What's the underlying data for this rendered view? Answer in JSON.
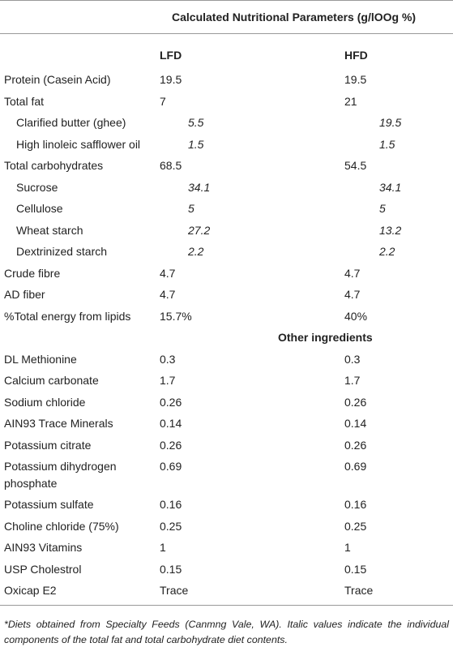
{
  "header": {
    "title": "Calculated Nutritional Parameters (g/lOOg %)",
    "columns": [
      "LFD",
      "HFD"
    ]
  },
  "table": {
    "rows": [
      {
        "label": "Protein (Casein Acid)",
        "lfd": 19.5,
        "hfd": 19.5
      },
      {
        "label": "Total fat",
        "lfd": 7,
        "hfd": 21
      },
      {
        "label": "Clarified butter (ghee)",
        "lfd": 5.5,
        "hfd": 19.5,
        "italic": true
      },
      {
        "label": "High linoleic safflower oil",
        "lfd": 1.5,
        "hfd": 1.5,
        "italic": true
      },
      {
        "label": "Total carbohydrates",
        "lfd": 68.5,
        "hfd": 54.5
      },
      {
        "label": "Sucrose",
        "lfd": 34.1,
        "hfd": 34.1,
        "italic": true
      },
      {
        "label": "Cellulose",
        "lfd": 5,
        "hfd": 5,
        "italic": true
      },
      {
        "label": "Wheat starch",
        "lfd": 27.2,
        "hfd": 13.2,
        "italic": true
      },
      {
        "label": "Dextrinized starch",
        "lfd": 2.2,
        "hfd": 2.2,
        "italic": true
      },
      {
        "label": "Crude fibre",
        "lfd": 4.7,
        "hfd": 4.7
      },
      {
        "label": "AD fiber",
        "lfd": 4.7,
        "hfd": 4.7
      },
      {
        "label": "%Total energy from lipids",
        "lfd": "15.7%",
        "hfd": "40%"
      }
    ]
  },
  "subheading": "Other ingredients",
  "table2": {
    "rows": [
      {
        "label": "DL Methionine",
        "lfd": 0.3,
        "hfd": 0.3
      },
      {
        "label": "Calcium carbonate",
        "lfd": 1.7,
        "hfd": 1.7
      },
      {
        "label": "Sodium chloride",
        "lfd": 0.26,
        "hfd": 0.26
      },
      {
        "label": "AIN93 Trace Minerals",
        "lfd": 0.14,
        "hfd": 0.14
      },
      {
        "label": "Potassium citrate",
        "lfd": 0.26,
        "hfd": 0.26
      },
      {
        "label": "Potassium dihydrogen phosphate",
        "lfd": 0.69,
        "hfd": 0.69
      },
      {
        "label": "Potassium sulfate",
        "lfd": 0.16,
        "hfd": 0.16
      },
      {
        "label": "Choline chloride (75%)",
        "lfd": 0.25,
        "hfd": 0.25
      },
      {
        "label": "AIN93 Vitamins",
        "lfd": 1,
        "hfd": 1
      },
      {
        "label": "USP Cholestrol",
        "lfd": 0.15,
        "hfd": 0.15
      },
      {
        "label": "Oxicap E2",
        "lfd": "Trace",
        "hfd": "Trace"
      }
    ]
  },
  "footnote": "*Diets obtained from Specialty Feeds (Canmng Vale, WA). Italic values indicate the individual components of the total fat and total carbohydrate diet contents."
}
